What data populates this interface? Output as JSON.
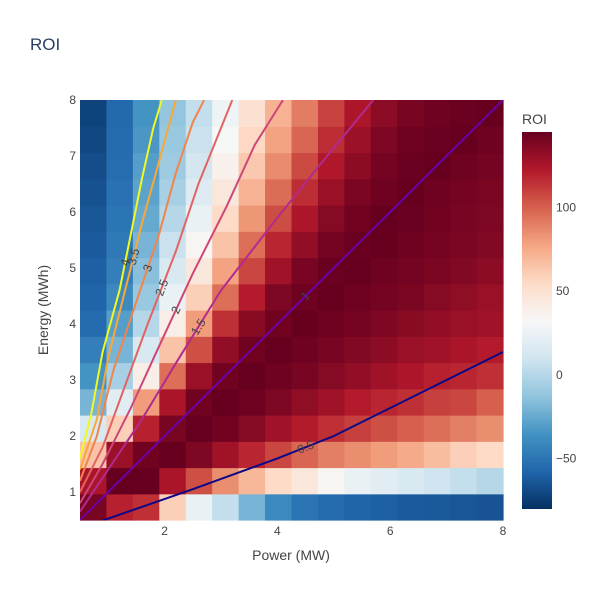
{
  "title": "ROI",
  "chart_data": {
    "type": "heatmap",
    "title": "ROI",
    "xlabel": "Power (MW)",
    "ylabel": "Energy (MWh)",
    "x": [
      0.5,
      1.0,
      1.5,
      2.0,
      2.5,
      3.0,
      3.5,
      4.0,
      4.5,
      5.0,
      5.5,
      6.0,
      6.5,
      7.0,
      7.5,
      8.0
    ],
    "y": [
      0.5,
      1.0,
      1.5,
      2.0,
      2.5,
      3.0,
      3.5,
      4.0,
      4.5,
      5.0,
      5.5,
      6.0,
      6.5,
      7.0,
      7.5,
      8.0
    ],
    "xlim": [
      0.5,
      8
    ],
    "ylim": [
      0.5,
      8
    ],
    "x_ticks": [
      "2",
      "4",
      "6",
      "8"
    ],
    "x_tick_values": [
      2,
      4,
      6,
      8
    ],
    "y_ticks": [
      "1",
      "2",
      "3",
      "4",
      "5",
      "6",
      "7",
      "8"
    ],
    "y_tick_values": [
      1,
      2,
      3,
      4,
      5,
      6,
      7,
      8
    ],
    "z_description": "ROI (%) per power/energy cell",
    "z": [
      [
        140,
        120,
        115,
        60,
        25,
        5,
        -20,
        -40,
        -50,
        -55,
        -58,
        -60,
        -62,
        -63,
        -64,
        -65
      ],
      [
        125,
        145,
        145,
        125,
        105,
        85,
        70,
        55,
        45,
        35,
        25,
        20,
        15,
        10,
        5,
        0
      ],
      [
        65,
        130,
        142,
        145,
        138,
        128,
        118,
        108,
        98,
        90,
        85,
        80,
        75,
        68,
        60,
        55
      ],
      [
        15,
        60,
        120,
        140,
        145,
        142,
        136,
        128,
        122,
        115,
        110,
        105,
        100,
        95,
        90,
        85
      ],
      [
        -20,
        20,
        80,
        125,
        142,
        145,
        143,
        138,
        133,
        128,
        122,
        118,
        115,
        110,
        108,
        100
      ],
      [
        -35,
        -5,
        40,
        95,
        130,
        142,
        145,
        143,
        140,
        136,
        132,
        128,
        124,
        120,
        118,
        115
      ],
      [
        -45,
        -20,
        15,
        65,
        105,
        132,
        142,
        145,
        143,
        140,
        137,
        134,
        130,
        128,
        125,
        122
      ],
      [
        -55,
        -30,
        0,
        40,
        80,
        115,
        135,
        142,
        145,
        143,
        141,
        138,
        135,
        132,
        130,
        128
      ],
      [
        -58,
        -40,
        -10,
        25,
        60,
        95,
        122,
        138,
        143,
        145,
        143,
        141,
        139,
        136,
        133,
        130
      ],
      [
        -60,
        -45,
        -15,
        15,
        45,
        78,
        108,
        128,
        140,
        144,
        145,
        143,
        141,
        139,
        137,
        134
      ],
      [
        -62,
        -48,
        -20,
        8,
        35,
        65,
        95,
        118,
        132,
        141,
        144,
        145,
        143,
        141,
        139,
        137
      ],
      [
        -64,
        -50,
        -25,
        0,
        25,
        55,
        82,
        106,
        124,
        136,
        142,
        145,
        144,
        142,
        140,
        138
      ],
      [
        -66,
        -52,
        -28,
        -5,
        18,
        45,
        72,
        96,
        116,
        130,
        139,
        143,
        145,
        143,
        141,
        139
      ],
      [
        -68,
        -54,
        -30,
        -8,
        12,
        38,
        63,
        86,
        107,
        123,
        134,
        141,
        144,
        145,
        143,
        141
      ],
      [
        -70,
        -55,
        -33,
        -10,
        8,
        32,
        56,
        78,
        98,
        116,
        129,
        138,
        143,
        144,
        145,
        143
      ],
      [
        -72,
        -56,
        -35,
        -12,
        5,
        27,
        50,
        72,
        91,
        109,
        124,
        134,
        140,
        143,
        144,
        145
      ]
    ],
    "zlim": [
      -80,
      145
    ],
    "colorscale": [
      "#053061",
      "#2166ac",
      "#4393c3",
      "#92c5de",
      "#d1e5f0",
      "#f7f7f7",
      "#fddbc7",
      "#f4a582",
      "#d6604d",
      "#b2182b",
      "#67001f"
    ],
    "colorbar": {
      "title": "ROI",
      "ticks": [
        "−50",
        "0",
        "50",
        "100"
      ],
      "tick_values": [
        -50,
        0,
        50,
        100
      ]
    },
    "contours": [
      {
        "level": 0.5,
        "label": "0.5",
        "color": "#0d0887",
        "points": [
          [
            0.5,
            0.35
          ],
          [
            1.5,
            0.7
          ],
          [
            2.5,
            1.05
          ],
          [
            4.0,
            1.6
          ],
          [
            5.0,
            2.0
          ],
          [
            6.5,
            2.75
          ],
          [
            8.0,
            3.5
          ]
        ]
      },
      {
        "level": 1,
        "label": "1",
        "color": "#6a00a8",
        "points": [
          [
            0.5,
            0.5
          ],
          [
            1.0,
            1.0
          ],
          [
            2.0,
            2.0
          ],
          [
            3.0,
            3.0
          ],
          [
            4.0,
            4.0
          ],
          [
            5.0,
            5.0
          ],
          [
            6.0,
            6.0
          ],
          [
            7.0,
            7.0
          ],
          [
            8.0,
            8.0
          ]
        ]
      },
      {
        "level": 1.5,
        "label": "1.5",
        "color": "#b12a90",
        "points": [
          [
            0.5,
            0.65
          ],
          [
            1.0,
            1.4
          ],
          [
            1.6,
            2.3
          ],
          [
            2.2,
            3.3
          ],
          [
            3.0,
            4.6
          ],
          [
            4.0,
            5.9
          ],
          [
            4.8,
            6.9
          ],
          [
            5.7,
            8.0
          ]
        ]
      },
      {
        "level": 2,
        "label": "2",
        "color": "#cc4778",
        "points": [
          [
            0.5,
            0.8
          ],
          [
            0.9,
            1.5
          ],
          [
            1.4,
            2.5
          ],
          [
            1.9,
            3.6
          ],
          [
            2.5,
            4.9
          ],
          [
            3.1,
            6.1
          ],
          [
            3.6,
            7.2
          ],
          [
            4.1,
            8.0
          ]
        ]
      },
      {
        "level": 2.5,
        "label": "2.5",
        "color": "#e16462",
        "points": [
          [
            0.5,
            1.0
          ],
          [
            0.9,
            1.8
          ],
          [
            1.3,
            2.9
          ],
          [
            1.7,
            4.0
          ],
          [
            2.2,
            5.3
          ],
          [
            2.6,
            6.5
          ],
          [
            3.0,
            7.5
          ],
          [
            3.2,
            8.0
          ]
        ]
      },
      {
        "level": 3,
        "label": "3",
        "color": "#f2844b",
        "points": [
          [
            0.5,
            1.2
          ],
          [
            0.8,
            2.0
          ],
          [
            1.1,
            3.2
          ],
          [
            1.5,
            4.4
          ],
          [
            1.9,
            5.6
          ],
          [
            2.2,
            6.7
          ],
          [
            2.5,
            7.6
          ],
          [
            2.7,
            8.0
          ]
        ]
      },
      {
        "level": 3.5,
        "label": "3.5",
        "color": "#fca636",
        "points": [
          [
            0.5,
            1.4
          ],
          [
            0.8,
            2.3
          ],
          [
            1.0,
            3.4
          ],
          [
            1.3,
            4.6
          ],
          [
            1.6,
            5.8
          ],
          [
            1.9,
            6.9
          ],
          [
            2.2,
            8.0
          ]
        ]
      },
      {
        "level": 4,
        "label": "4",
        "color": "#f0f921",
        "points": [
          [
            0.5,
            1.6
          ],
          [
            0.7,
            2.4
          ],
          [
            0.9,
            3.5
          ],
          [
            1.2,
            4.6
          ],
          [
            1.4,
            5.6
          ],
          [
            1.6,
            6.6
          ],
          [
            1.8,
            7.5
          ],
          [
            1.95,
            8.0
          ]
        ]
      }
    ]
  }
}
